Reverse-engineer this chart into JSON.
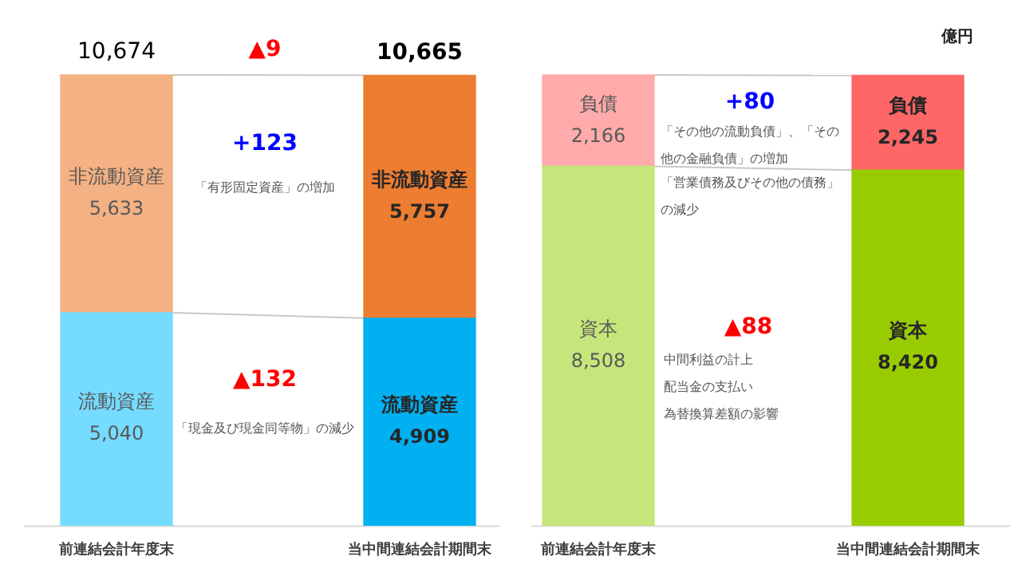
{
  "chart_data": [
    {
      "type": "bar",
      "stacked": true,
      "categories": [
        "前連結会計年度末",
        "当中間連結会計期間末"
      ],
      "legend": false,
      "grid": false,
      "tick_labels": "x",
      "totals": [
        "10,674",
        "10,665"
      ],
      "series": [
        {
          "name": "流動資産",
          "colors": [
            "#75dbff",
            "#00b0f0"
          ],
          "values": [
            5040,
            4909
          ],
          "value_labels": [
            "5,040",
            "4,909"
          ]
        },
        {
          "name": "非流動資産",
          "colors": [
            "#f4b183",
            "#ed7d31"
          ],
          "values": [
            5633,
            5757
          ],
          "value_labels": [
            "5,633",
            "5,757"
          ]
        }
      ],
      "annotations": [
        "▲9",
        "+123",
        "「有形固定資産」の増加",
        "▲132",
        "「現金及び現金同等物」の減少"
      ]
    },
    {
      "type": "bar",
      "stacked": true,
      "categories": [
        "前連結会計年度末",
        "当中間連結会計期間末"
      ],
      "legend": false,
      "grid": false,
      "tick_labels": "x",
      "series": [
        {
          "name": "資本",
          "colors": [
            "#c5e67a",
            "#99cc00"
          ],
          "values": [
            8508,
            8420
          ],
          "value_labels": [
            "8,508",
            "8,420"
          ]
        },
        {
          "name": "負債",
          "colors": [
            "#ffabab",
            "#ff6666"
          ],
          "values": [
            2166,
            2245
          ],
          "value_labels": [
            "2,166",
            "2,245"
          ]
        }
      ],
      "annotations": [
        "億円",
        "+80",
        "「その他の流動負債」、「その他の金融負債」の増加",
        "「営業債務及びその他の債務」の減少",
        "▲88",
        "中間利益の計上",
        "配当金の支払い",
        "為替換算差額の影響"
      ]
    }
  ]
}
